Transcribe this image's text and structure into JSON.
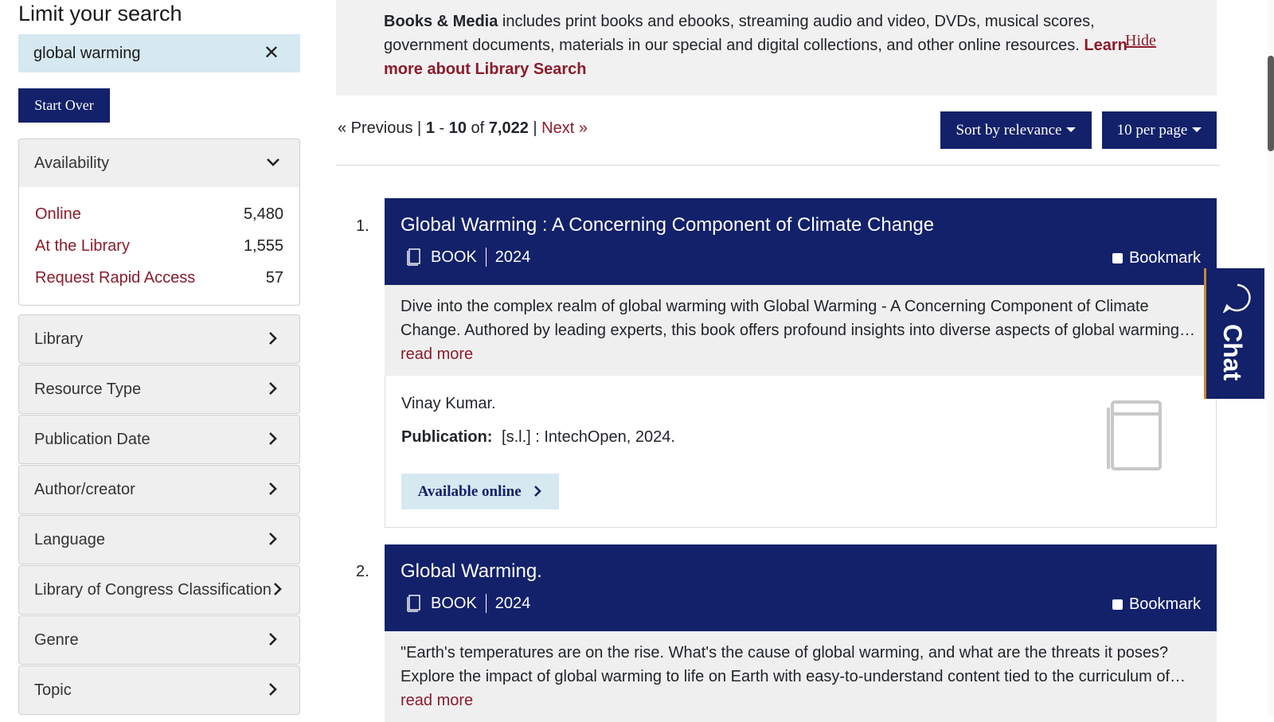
{
  "sidebar": {
    "title": "Limit your search",
    "query": "global warming",
    "clear_icon": "close-icon",
    "start_over": "Start Over",
    "availability": {
      "label": "Availability",
      "items": [
        {
          "label": "Online",
          "count": "5,480"
        },
        {
          "label": "At the Library",
          "count": "1,555"
        },
        {
          "label": "Request Rapid Access",
          "count": "57"
        }
      ]
    },
    "facets": [
      "Library",
      "Resource Type",
      "Publication Date",
      "Author/creator",
      "Language",
      "Library of Congress Classification",
      "Genre",
      "Topic"
    ]
  },
  "notice": {
    "bold": "Books & Media",
    "text": " includes print books and ebooks, streaming audio and video, DVDs, musical scores, government documents, materials in our special and digital collections, and other online resources. ",
    "link": "Learn more about Library Search",
    "hide": "Hide"
  },
  "pager": {
    "previous": "« Previous",
    "range_start": "1",
    "range_end": "10",
    "of": "of",
    "total": "7,022",
    "next": "Next »"
  },
  "sort_label": "Sort by relevance",
  "per_page_label": "10 per page",
  "results": [
    {
      "num": "1.",
      "title": "Global Warming : A Concerning Component of Climate Change",
      "format": "BOOK",
      "year": "2024",
      "bookmark": "Bookmark",
      "description": "Dive into the complex realm of global warming with Global Warming - A Concerning Component of Climate Change. Authored by leading experts, this book offers profound insights into diverse aspects of global warming…",
      "read_more": "read more",
      "author": "Vinay Kumar.",
      "publication_label": "Publication:",
      "publication": "[s.l.] : IntechOpen, 2024.",
      "available": "Available online"
    },
    {
      "num": "2.",
      "title": "Global Warming.",
      "format": "BOOK",
      "year": "2024",
      "bookmark": "Bookmark",
      "description": "\"Earth's temperatures are on the rise. What's the cause of global warming, and what are the threats it poses? Explore the impact of global warming to life on Earth with easy-to-understand content tied to the curriculum of…",
      "read_more": "read more"
    }
  ],
  "chat_label": "Chat",
  "colors": {
    "navy": "#13216a",
    "maroon": "#8a1c2b",
    "light_blue": "#d6e8f0",
    "gold_accent": "#c78a2c"
  }
}
